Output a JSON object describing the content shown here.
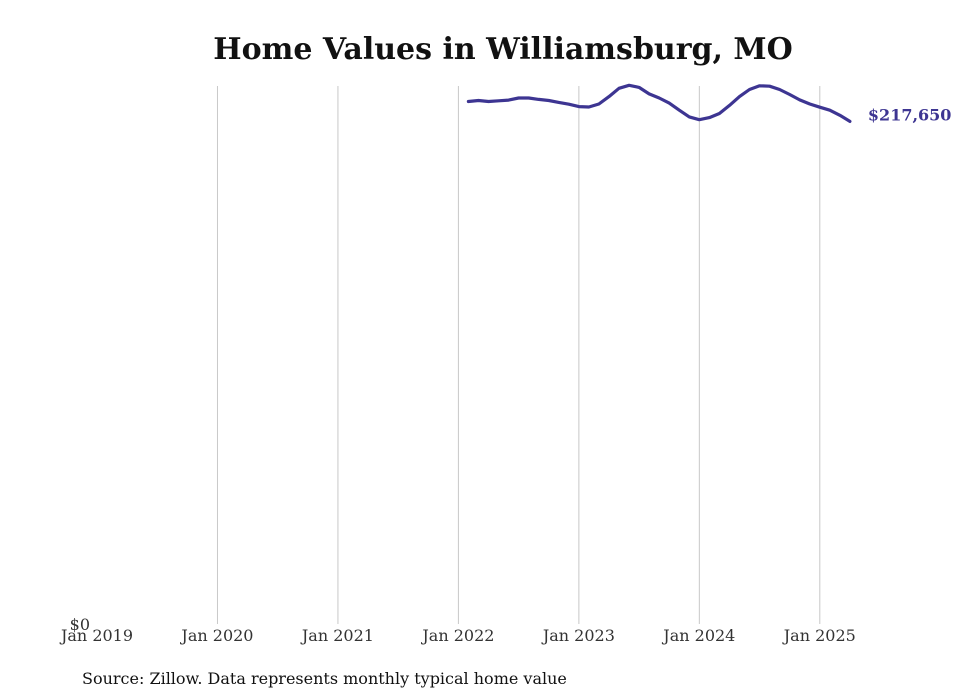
{
  "chart_data": {
    "type": "line",
    "title": "Home Values in Williamsburg, MO",
    "xlabel": "",
    "ylabel": "",
    "x_ticks": [
      "Jan 2019",
      "Jan 2020",
      "Jan 2021",
      "Jan 2022",
      "Jan 2023",
      "Jan 2024",
      "Jan 2025"
    ],
    "x_range": [
      "2019-01",
      "2025-06"
    ],
    "y_ticks": [
      {
        "value": 0,
        "label": "$0"
      }
    ],
    "ylim": [
      0,
      233000
    ],
    "grid": {
      "vertical": true,
      "horizontal": false
    },
    "series": [
      {
        "color": "#3d3592",
        "end_label": "$217,650",
        "points": [
          {
            "x": "2022-02",
            "y": 226300
          },
          {
            "x": "2022-03",
            "y": 226700
          },
          {
            "x": "2022-04",
            "y": 226300
          },
          {
            "x": "2022-05",
            "y": 226600
          },
          {
            "x": "2022-06",
            "y": 226900
          },
          {
            "x": "2022-07",
            "y": 227800
          },
          {
            "x": "2022-08",
            "y": 227800
          },
          {
            "x": "2022-09",
            "y": 227200
          },
          {
            "x": "2022-10",
            "y": 226700
          },
          {
            "x": "2022-11",
            "y": 225900
          },
          {
            "x": "2022-12",
            "y": 225100
          },
          {
            "x": "2023-01",
            "y": 224100
          },
          {
            "x": "2023-02",
            "y": 223900
          },
          {
            "x": "2023-03",
            "y": 225200
          },
          {
            "x": "2023-04",
            "y": 228400
          },
          {
            "x": "2023-05",
            "y": 232000
          },
          {
            "x": "2023-06",
            "y": 233300
          },
          {
            "x": "2023-07",
            "y": 232400
          },
          {
            "x": "2023-08",
            "y": 229600
          },
          {
            "x": "2023-09",
            "y": 227800
          },
          {
            "x": "2023-10",
            "y": 225600
          },
          {
            "x": "2023-11",
            "y": 222500
          },
          {
            "x": "2023-12",
            "y": 219600
          },
          {
            "x": "2024-01",
            "y": 218400
          },
          {
            "x": "2024-02",
            "y": 219300
          },
          {
            "x": "2024-03",
            "y": 221100
          },
          {
            "x": "2024-04",
            "y": 224600
          },
          {
            "x": "2024-05",
            "y": 228400
          },
          {
            "x": "2024-06",
            "y": 231500
          },
          {
            "x": "2024-07",
            "y": 233100
          },
          {
            "x": "2024-08",
            "y": 232900
          },
          {
            "x": "2024-09",
            "y": 231500
          },
          {
            "x": "2024-10",
            "y": 229300
          },
          {
            "x": "2024-11",
            "y": 227000
          },
          {
            "x": "2024-12",
            "y": 225200
          },
          {
            "x": "2025-01",
            "y": 223800
          },
          {
            "x": "2025-02",
            "y": 222500
          },
          {
            "x": "2025-03",
            "y": 220300
          },
          {
            "x": "2025-04",
            "y": 217650
          }
        ]
      }
    ]
  },
  "source_note": "Source: Zillow. Data represents monthly typical home value"
}
